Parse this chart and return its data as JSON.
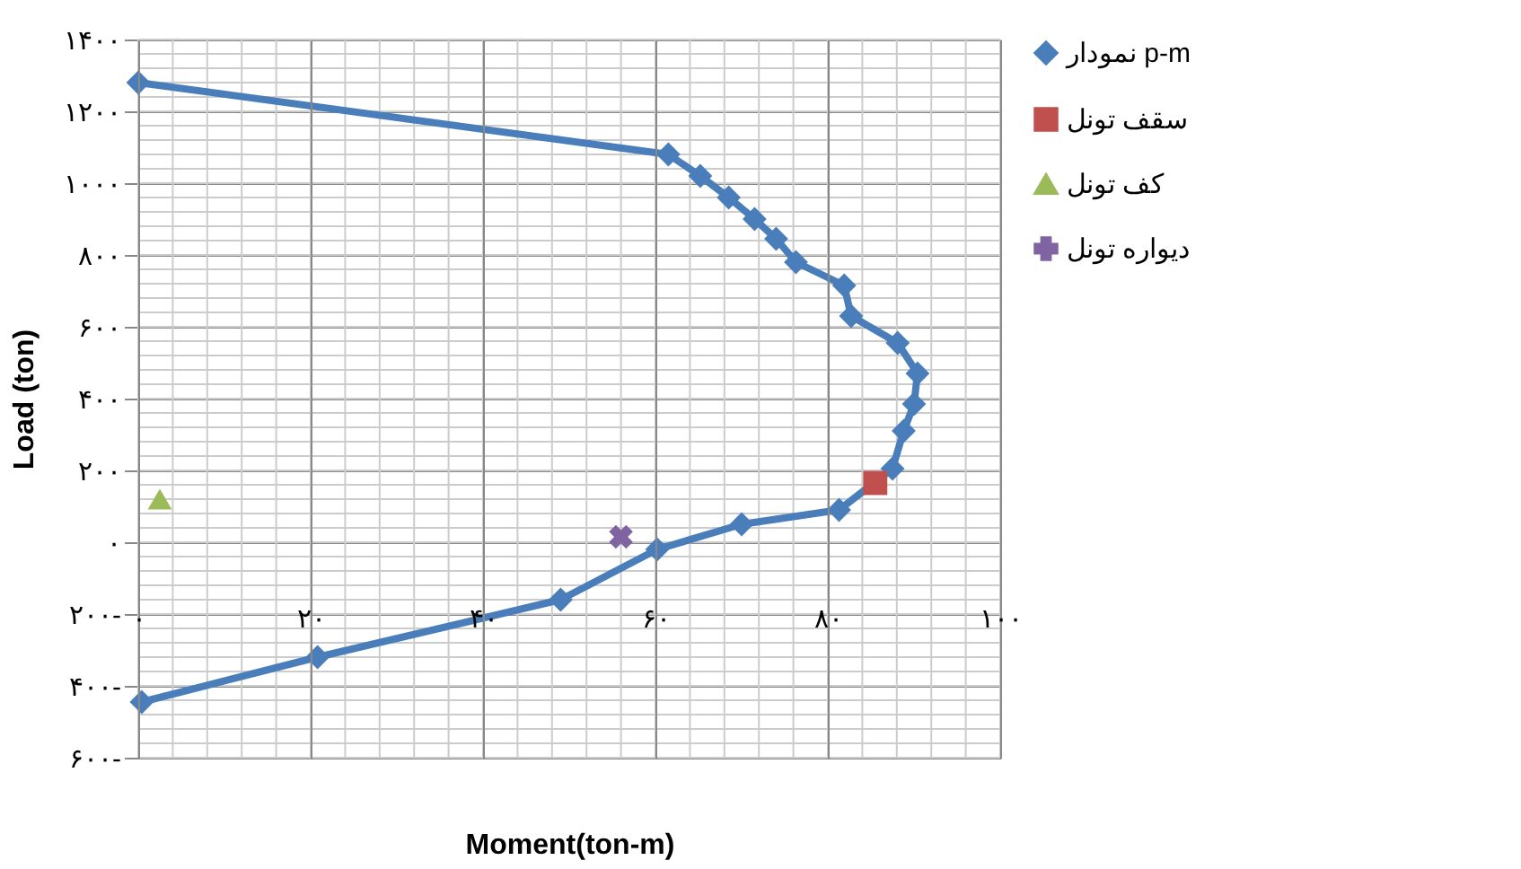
{
  "chart_data": {
    "type": "line",
    "xlabel": "Moment(ton-m)",
    "ylabel": "Load (ton)",
    "xlim": [
      0,
      100
    ],
    "ylim": [
      -600,
      1400
    ],
    "xticks": [
      {
        "value": 0,
        "label": "۰"
      },
      {
        "value": 20,
        "label": "۲۰"
      },
      {
        "value": 40,
        "label": "۴۰"
      },
      {
        "value": 60,
        "label": "۶۰"
      },
      {
        "value": 80,
        "label": "۸۰"
      },
      {
        "value": 100,
        "label": "۱۰۰"
      }
    ],
    "yticks": [
      {
        "value": -600,
        "label": "۶۰۰-"
      },
      {
        "value": -400,
        "label": "۴۰۰-"
      },
      {
        "value": -200,
        "label": "۲۰۰-"
      },
      {
        "value": 0,
        "label": "۰"
      },
      {
        "value": 200,
        "label": "۲۰۰"
      },
      {
        "value": 400,
        "label": "۴۰۰"
      },
      {
        "value": 600,
        "label": "۶۰۰"
      },
      {
        "value": 800,
        "label": "۸۰۰"
      },
      {
        "value": 1000,
        "label": "۱۰۰۰"
      },
      {
        "value": 1200,
        "label": "۱۲۰۰"
      },
      {
        "value": 1400,
        "label": "۱۴۰۰"
      }
    ],
    "grid": true,
    "legend": "right",
    "line_style": "solid",
    "series": [
      {
        "name": "نمودار p-m",
        "type": "line",
        "marker": "diamond",
        "color": "#4a7ebb",
        "x": [
          0,
          61.5,
          65.2,
          68.5,
          71.5,
          74,
          76.3,
          81.9,
          82.7,
          88.1,
          90.4,
          90,
          88.8,
          87.5,
          81.3,
          70,
          60.2,
          49,
          20.8,
          0.4
        ],
        "values": [
          1280,
          1080,
          1020,
          960,
          900,
          845,
          780,
          715,
          630,
          555,
          470,
          385,
          310,
          205,
          90,
          50,
          -20,
          -160,
          -320,
          -445
        ]
      },
      {
        "name": "سقف تونل",
        "type": "scatter",
        "marker": "square",
        "color": "#c0504d",
        "x": [
          85.5
        ],
        "values": [
          165
        ]
      },
      {
        "name": "کف تونل",
        "type": "scatter",
        "marker": "triangle",
        "color": "#9bbb59",
        "x": [
          2.5
        ],
        "values": [
          120
        ]
      },
      {
        "name": "دیواره تونل",
        "type": "scatter",
        "marker": "cross",
        "color": "#8064a2",
        "x": [
          56
        ],
        "values": [
          15
        ]
      }
    ]
  }
}
